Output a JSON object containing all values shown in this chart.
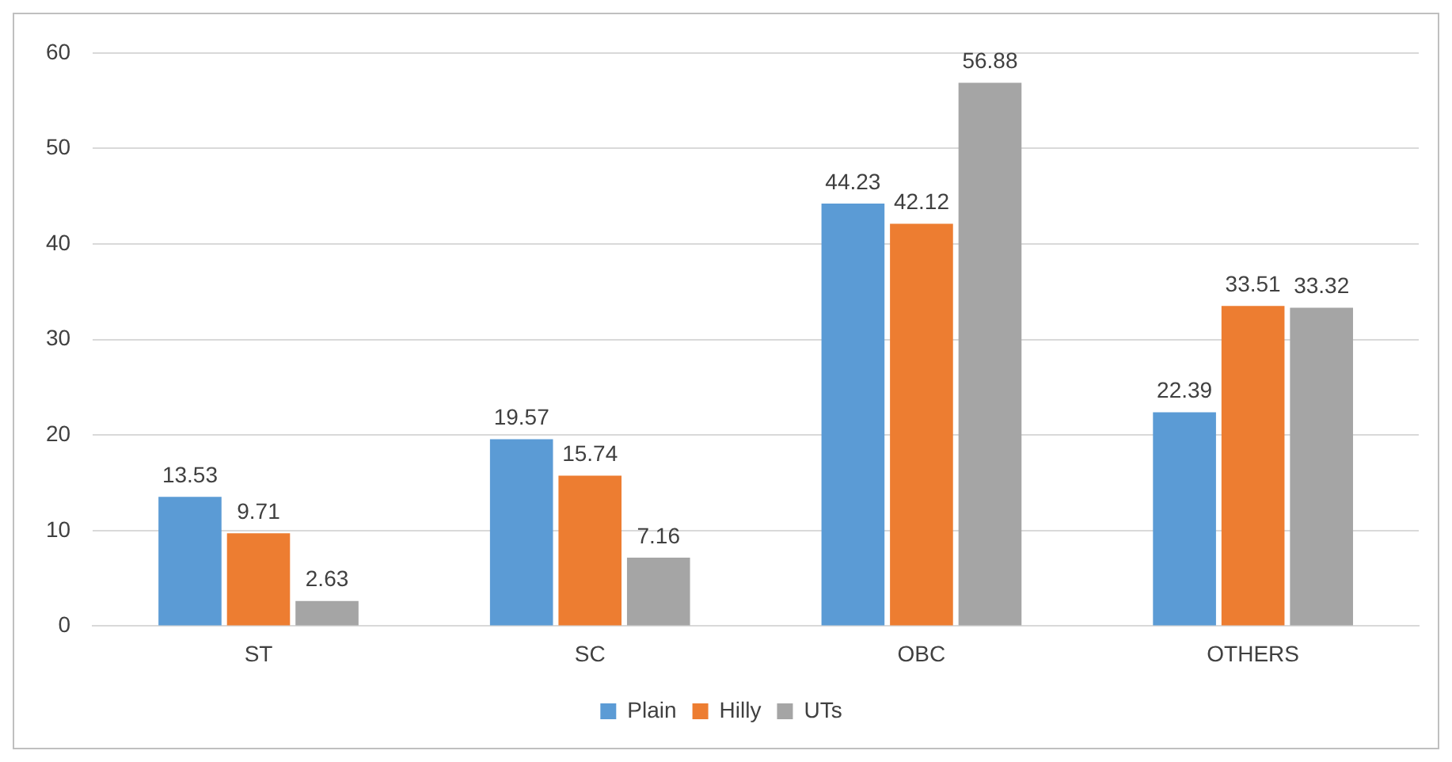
{
  "chart_data": {
    "type": "bar",
    "categories": [
      "ST",
      "SC",
      "OBC",
      "OTHERS"
    ],
    "series": [
      {
        "name": "Plain",
        "color": "#5b9bd5",
        "values": [
          13.53,
          19.57,
          44.23,
          22.39
        ]
      },
      {
        "name": "Hilly",
        "color": "#ed7d31",
        "values": [
          9.71,
          15.74,
          42.12,
          33.51
        ]
      },
      {
        "name": "UTs",
        "color": "#a5a5a5",
        "values": [
          2.63,
          7.16,
          56.88,
          33.32
        ]
      }
    ],
    "ylim": [
      0,
      60
    ],
    "yticks": [
      0,
      10,
      20,
      30,
      40,
      50,
      60
    ],
    "grid": "y",
    "legend": "bottom",
    "data_labels": true
  }
}
